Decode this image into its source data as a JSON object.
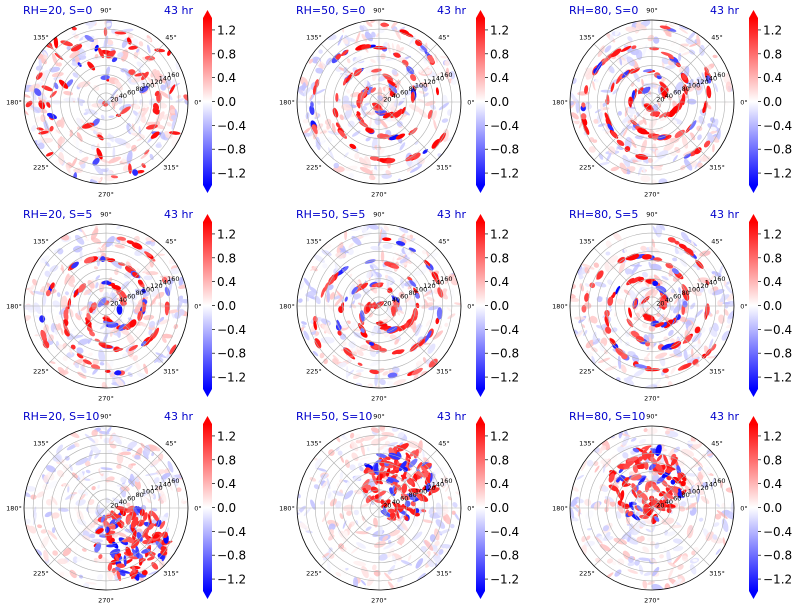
{
  "chart_data": {
    "type": "heatmap",
    "projection": "polar",
    "layout": {
      "rows": 3,
      "cols": 3
    },
    "time_label": "43 hr",
    "angle_ticks": [
      "0°",
      "45°",
      "90°",
      "135°",
      "180°",
      "225°",
      "270°",
      "315°"
    ],
    "radial_ticks": [
      "20",
      "40",
      "60",
      "80",
      "100",
      "120",
      "140",
      "160"
    ],
    "radial_range": [
      0,
      180
    ],
    "colorbar": {
      "ticks": [
        "1.2",
        "0.8",
        "0.4",
        "0.0",
        "−0.4",
        "−0.8",
        "−1.2"
      ],
      "tick_values": [
        1.2,
        0.8,
        0.4,
        0.0,
        -0.4,
        -0.8,
        -1.2
      ],
      "range": [
        -1.4,
        1.4
      ],
      "colormap": "bwr",
      "extend": "both",
      "colors": {
        "min": "#0000ff",
        "mid": "#ffffff",
        "max": "#ff0000"
      }
    },
    "panels": [
      {
        "title": "RH=20, S=0",
        "time": "43 hr",
        "pattern": "scattered",
        "shift": [
          0.0,
          0.0
        ],
        "seed": 11
      },
      {
        "title": "RH=50, S=0",
        "time": "43 hr",
        "pattern": "spiral-bands",
        "shift": [
          0.02,
          0.05
        ],
        "seed": 23
      },
      {
        "title": "RH=80, S=0",
        "time": "43 hr",
        "pattern": "spiral-bands",
        "shift": [
          0.0,
          0.05
        ],
        "seed": 37
      },
      {
        "title": "RH=20, S=5",
        "time": "43 hr",
        "pattern": "spiral-eyewall",
        "shift": [
          0.06,
          -0.05
        ],
        "seed": 41
      },
      {
        "title": "RH=50, S=5",
        "time": "43 hr",
        "pattern": "spiral-eyewall",
        "shift": [
          0.06,
          -0.08
        ],
        "seed": 53
      },
      {
        "title": "RH=80, S=5",
        "time": "43 hr",
        "pattern": "spiral-eyewall",
        "shift": [
          0.0,
          -0.02
        ],
        "seed": 67
      },
      {
        "title": "RH=20, S=10",
        "time": "43 hr",
        "pattern": "sheared-southeast",
        "shift": [
          0.3,
          -0.4
        ],
        "seed": 71
      },
      {
        "title": "RH=50, S=10",
        "time": "43 hr",
        "pattern": "sheared-northeast",
        "shift": [
          0.25,
          0.3
        ],
        "seed": 83
      },
      {
        "title": "RH=80, S=10",
        "time": "43 hr",
        "pattern": "sheared-northwest",
        "shift": [
          -0.05,
          0.3
        ],
        "seed": 97
      }
    ],
    "title_color": "#0000cc",
    "grid": true
  }
}
